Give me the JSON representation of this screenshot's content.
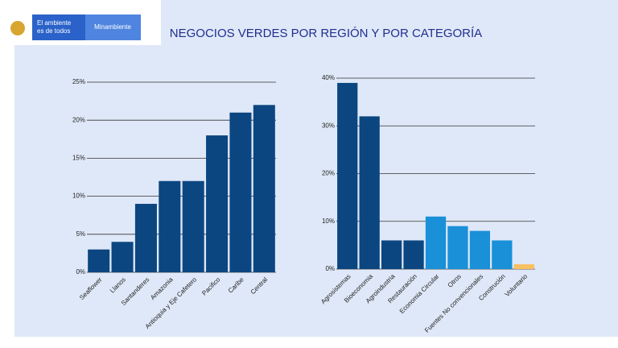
{
  "logo": {
    "line1": "El ambiente",
    "line2": "es de todos",
    "brand": "Minambiente"
  },
  "title": "NEGOCIOS VERDES POR REGIÓN Y POR CATEGORÍA",
  "chart_data": [
    {
      "type": "bar",
      "categories": [
        "Seaflower",
        "Llanos",
        "Santanderes",
        "Amazonia",
        "Antioquia y Eje Cafetero",
        "Pacifico",
        "Caribe",
        "Central"
      ],
      "values": [
        3,
        4,
        9,
        12,
        12,
        18,
        21,
        22
      ],
      "colors": [
        "#0b4680",
        "#0b4680",
        "#0b4680",
        "#0b4680",
        "#0b4680",
        "#0b4680",
        "#0b4680",
        "#0b4680"
      ],
      "ylim": [
        0,
        25
      ],
      "yticks": [
        {
          "value": 0,
          "label": "0%"
        },
        {
          "value": 5,
          "label": "5%"
        },
        {
          "value": 10,
          "label": "10%"
        },
        {
          "value": 15,
          "label": "15%"
        },
        {
          "value": 20,
          "label": "20%"
        },
        {
          "value": 25,
          "label": "25%"
        }
      ],
      "grid": true
    },
    {
      "type": "bar",
      "categories": [
        "Agrosistemas",
        "Bioeconomia",
        "Agroindustria",
        "Restauración",
        "Economia Circular",
        "Otros",
        "Fuentes No convencionales",
        "Construción",
        "Voluntario"
      ],
      "values": [
        39,
        32,
        6,
        6,
        11,
        9,
        8,
        6,
        1
      ],
      "colors": [
        "#0b4680",
        "#0b4680",
        "#0b4680",
        "#0b4680",
        "#1a90d8",
        "#1a90d8",
        "#1a90d8",
        "#1a90d8",
        "#f7c062"
      ],
      "ylim": [
        0,
        40
      ],
      "yticks": [
        {
          "value": 0,
          "label": "0%"
        },
        {
          "value": 10,
          "label": "10%"
        },
        {
          "value": 20,
          "label": "20%"
        },
        {
          "value": 30,
          "label": "30%"
        },
        {
          "value": 40,
          "label": "40%"
        }
      ],
      "grid": true
    }
  ]
}
